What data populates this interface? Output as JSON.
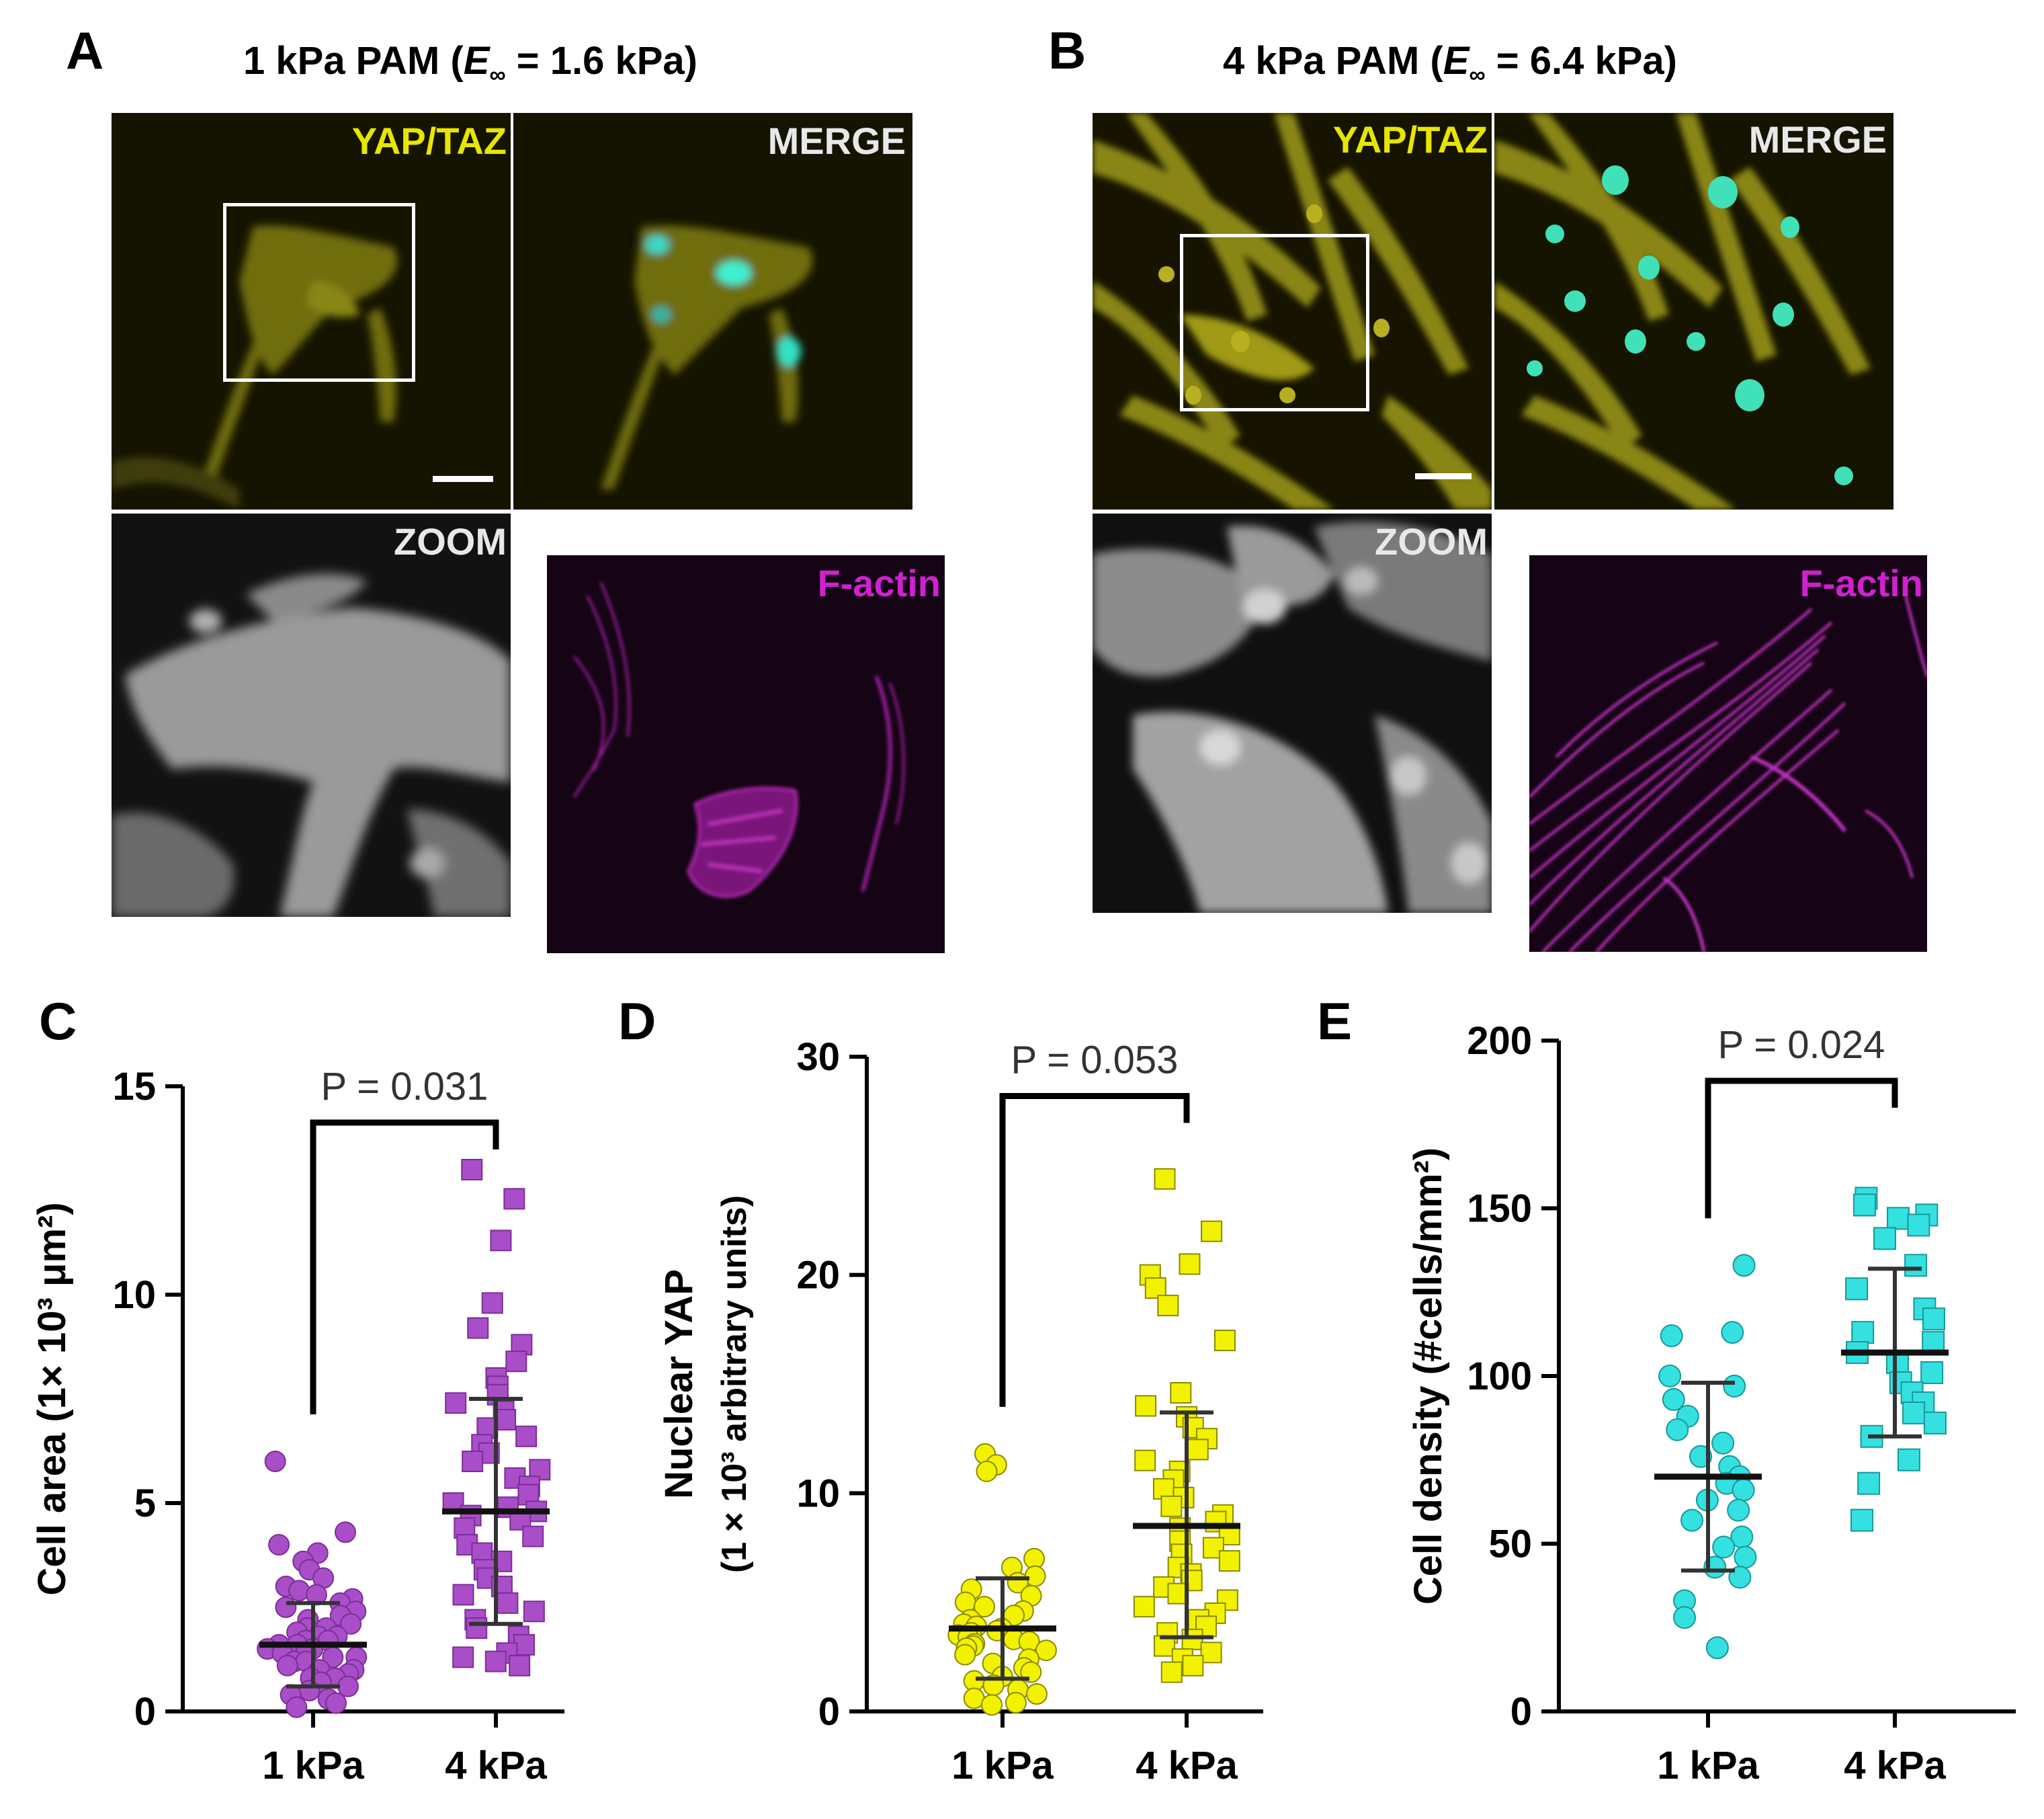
{
  "panel_a": {
    "letter": "A",
    "title_prefix": "1 kPa PAM (",
    "title_E": "E",
    "title_sub": "∞",
    "title_suffix": " = 1.6 kPa)",
    "labels": {
      "yap": "YAP/TAZ",
      "merge": "MERGE",
      "zoom": "ZOOM",
      "factin": "F-actin"
    }
  },
  "panel_b": {
    "letter": "B",
    "title_prefix": "4 kPa PAM (",
    "title_E": "E",
    "title_sub": "∞",
    "title_suffix": " = 6.4 kPa)",
    "labels": {
      "yap": "YAP/TAZ",
      "merge": "MERGE",
      "zoom": "ZOOM",
      "factin": "F-actin"
    }
  },
  "colors": {
    "yap": "#e6e600",
    "merge_label": "#e8e8e8",
    "factin": "#d020d0",
    "c_marker": "#a94ec8",
    "d_marker": "#f2f200",
    "e_marker": "#35e0e0"
  },
  "chart_data": [
    {
      "panel": "C",
      "type": "scatter",
      "ylabel": "Cell area (1× 10³ μm²)",
      "ylim": [
        0,
        15
      ],
      "yticks": [
        "0",
        "5",
        "10",
        "15"
      ],
      "categories": [
        "1 kPa",
        "4 kPa"
      ],
      "pvalue": "P = 0.031",
      "marker": "circle / square",
      "series": [
        {
          "category": "1 kPa",
          "mean": 1.6,
          "sd_low": 0.6,
          "sd_high": 2.6,
          "values": [
            6.0,
            4.3,
            4.0,
            3.8,
            3.6,
            3.4,
            3.2,
            3.0,
            2.9,
            2.8,
            2.7,
            2.6,
            2.5,
            2.4,
            2.3,
            2.2,
            2.1,
            2.0,
            2.0,
            1.9,
            1.8,
            1.8,
            1.7,
            1.7,
            1.6,
            1.6,
            1.5,
            1.5,
            1.4,
            1.4,
            1.3,
            1.3,
            1.2,
            1.2,
            1.1,
            1.0,
            1.0,
            0.9,
            0.8,
            0.8,
            0.7,
            0.6,
            0.5,
            0.4,
            0.3,
            0.2,
            0.1
          ]
        },
        {
          "category": "4 kPa",
          "mean": 4.8,
          "sd_low": 2.1,
          "sd_high": 7.5,
          "values": [
            13.0,
            12.3,
            11.3,
            9.8,
            9.2,
            8.8,
            8.4,
            8.0,
            7.8,
            7.6,
            7.4,
            7.2,
            7.0,
            6.8,
            6.6,
            6.4,
            6.2,
            6.0,
            5.8,
            5.6,
            5.4,
            5.2,
            5.0,
            4.9,
            4.8,
            4.7,
            4.6,
            4.4,
            4.2,
            4.0,
            3.8,
            3.6,
            3.4,
            3.2,
            3.0,
            2.8,
            2.6,
            2.4,
            2.2,
            2.0,
            1.8,
            1.6,
            1.4,
            1.3,
            1.2,
            1.1
          ]
        }
      ]
    },
    {
      "panel": "D",
      "type": "scatter",
      "ylabel_line1": "Nuclear YAP",
      "ylabel_line2": "(1 × 10³ arbitrary units)",
      "ylim": [
        0,
        30
      ],
      "yticks": [
        "0",
        "10",
        "20",
        "30"
      ],
      "categories": [
        "1 kPa",
        "4 kPa"
      ],
      "pvalue": "P = 0.053",
      "series": [
        {
          "category": "1 kPa",
          "mean": 3.8,
          "sd_low": 1.5,
          "sd_high": 6.1,
          "values": [
            11.8,
            11.3,
            11.0,
            7.0,
            6.6,
            6.2,
            5.9,
            5.6,
            5.3,
            5.0,
            4.8,
            4.6,
            4.4,
            4.2,
            4.0,
            3.9,
            3.8,
            3.7,
            3.6,
            3.5,
            3.4,
            3.3,
            3.2,
            3.1,
            3.0,
            2.9,
            2.8,
            2.6,
            2.4,
            2.2,
            2.0,
            1.8,
            1.6,
            1.4,
            1.2,
            1.0,
            0.8,
            0.6,
            0.4,
            0.3
          ]
        },
        {
          "category": "4 kPa",
          "mean": 8.5,
          "sd_low": 3.4,
          "sd_high": 13.7,
          "values": [
            24.4,
            22.0,
            20.5,
            20.0,
            19.4,
            18.6,
            17.0,
            14.6,
            14.0,
            13.5,
            13.0,
            12.5,
            12.0,
            11.5,
            11.0,
            10.6,
            10.2,
            9.8,
            9.4,
            9.0,
            8.7,
            8.4,
            8.1,
            7.8,
            7.5,
            7.2,
            6.9,
            6.6,
            6.3,
            6.0,
            5.7,
            5.4,
            5.1,
            4.8,
            4.5,
            4.2,
            3.9,
            3.6,
            3.3,
            3.0,
            2.7,
            2.4,
            2.1,
            1.8
          ]
        }
      ]
    },
    {
      "panel": "E",
      "type": "scatter",
      "ylabel": "Cell density (#cells/mm²)",
      "ylim": [
        0,
        200
      ],
      "yticks": [
        "0",
        "50",
        "100",
        "150",
        "200"
      ],
      "categories": [
        "1 kPa",
        "4 kPa"
      ],
      "pvalue": "P = 0.024",
      "series": [
        {
          "category": "1 kPa",
          "mean": 70,
          "sd_low": 42,
          "sd_high": 98,
          "values": [
            133,
            113,
            112,
            100,
            97,
            93,
            88,
            84,
            80,
            76,
            73,
            70,
            68,
            66,
            63,
            60,
            57,
            52,
            49,
            46,
            43,
            40,
            33,
            28,
            19
          ]
        },
        {
          "category": "4 kPa",
          "mean": 107,
          "sd_low": 82,
          "sd_high": 132,
          "values": [
            153,
            151,
            148,
            147,
            145,
            141,
            133,
            126,
            120,
            117,
            113,
            110,
            107,
            104,
            101,
            98,
            95,
            92,
            89,
            86,
            82,
            75,
            68,
            57
          ]
        }
      ]
    }
  ]
}
